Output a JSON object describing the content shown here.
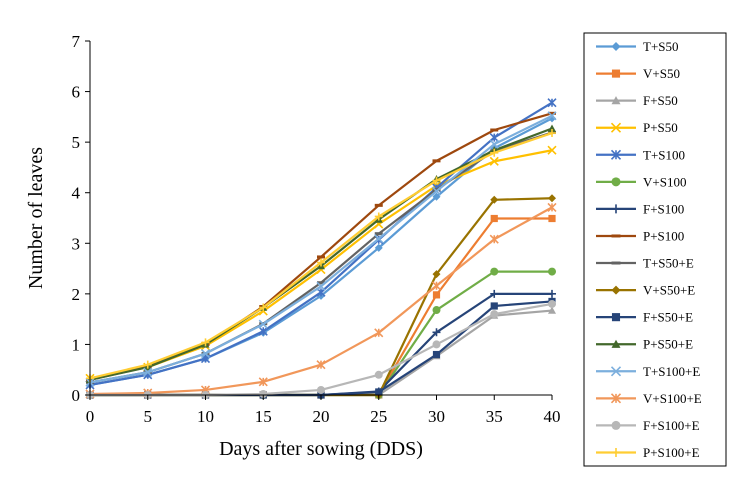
{
  "chart_data": {
    "type": "line",
    "title": "",
    "xlabel": "Days after sowing (DDS)",
    "ylabel": "Number of leaves",
    "x": [
      0,
      5,
      10,
      15,
      20,
      25,
      30,
      35,
      40
    ],
    "xlim": [
      0,
      40
    ],
    "ylim": [
      0,
      7
    ],
    "xticks": [
      "0",
      "5",
      "10",
      "15",
      "20",
      "25",
      "30",
      "35",
      "40"
    ],
    "yticks": [
      "0",
      "1",
      "2",
      "3",
      "4",
      "5",
      "6",
      "7"
    ],
    "grid": false,
    "legend_position": "right",
    "series": [
      {
        "name": "T+S50",
        "color": "#5B9BD5",
        "marker": "diamond",
        "values": [
          0.2,
          0.4,
          0.72,
          1.23,
          1.96,
          2.91,
          3.92,
          4.88,
          5.47
        ]
      },
      {
        "name": "V+S50",
        "color": "#ED7D31",
        "marker": "square",
        "values": [
          0,
          0,
          0,
          0,
          0,
          0,
          1.98,
          3.49,
          3.49
        ]
      },
      {
        "name": "F+S50",
        "color": "#A5A5A5",
        "marker": "triangle",
        "values": [
          0,
          0,
          0,
          0,
          0,
          0,
          0.77,
          1.57,
          1.67
        ]
      },
      {
        "name": "P+S50",
        "color": "#FFC000",
        "marker": "x",
        "values": [
          0.33,
          0.55,
          0.97,
          1.66,
          2.48,
          3.38,
          4.14,
          4.62,
          4.84
        ]
      },
      {
        "name": "T+S100",
        "color": "#4472C4",
        "marker": "star",
        "values": [
          0.2,
          0.4,
          0.72,
          1.26,
          2.03,
          3.07,
          4.1,
          5.09,
          5.78
        ]
      },
      {
        "name": "V+S100",
        "color": "#70AD47",
        "marker": "circle",
        "values": [
          0,
          0,
          0,
          0,
          0,
          0,
          1.68,
          2.44,
          2.44
        ]
      },
      {
        "name": "F+S100",
        "color": "#264478",
        "marker": "plus",
        "values": [
          0,
          0,
          0,
          0,
          0,
          0.07,
          1.24,
          2.0,
          2.0
        ]
      },
      {
        "name": "P+S100",
        "color": "#9E480E",
        "marker": "dash",
        "values": [
          0.3,
          0.56,
          1.0,
          1.75,
          2.73,
          3.75,
          4.63,
          5.24,
          5.57
        ]
      },
      {
        "name": "T+S50+E",
        "color": "#636363",
        "marker": "dash",
        "values": [
          0.25,
          0.45,
          0.82,
          1.41,
          2.22,
          3.19,
          4.06,
          4.83,
          5.19
        ]
      },
      {
        "name": "V+S50+E",
        "color": "#997300",
        "marker": "diamond",
        "values": [
          0,
          0,
          0,
          0,
          0,
          0,
          2.39,
          3.86,
          3.89
        ]
      },
      {
        "name": "F+S50+E",
        "color": "#264478",
        "marker": "square",
        "values": [
          0,
          0,
          0,
          0,
          0,
          0.06,
          0.8,
          1.76,
          1.85
        ]
      },
      {
        "name": "P+S50+E",
        "color": "#43682B",
        "marker": "triangle",
        "values": [
          0.3,
          0.55,
          1.0,
          1.73,
          2.55,
          3.47,
          4.27,
          4.84,
          5.27
        ]
      },
      {
        "name": "T+S100+E",
        "color": "#7CAFDD",
        "marker": "x",
        "values": [
          0.25,
          0.45,
          0.82,
          1.4,
          2.15,
          3.09,
          4.03,
          4.96,
          5.52
        ]
      },
      {
        "name": "V+S100+E",
        "color": "#F1975A",
        "marker": "star",
        "values": [
          0.02,
          0.04,
          0.1,
          0.26,
          0.6,
          1.23,
          2.16,
          3.08,
          3.71
        ]
      },
      {
        "name": "F+S100+E",
        "color": "#B7B7B7",
        "marker": "circle",
        "values": [
          0,
          0,
          0,
          0.02,
          0.1,
          0.4,
          1.0,
          1.6,
          1.8
        ]
      },
      {
        "name": "P+S100+E",
        "color": "#FFCD33",
        "marker": "plus",
        "values": [
          0.33,
          0.6,
          1.04,
          1.73,
          2.62,
          3.53,
          4.24,
          4.79,
          5.18
        ]
      }
    ]
  }
}
